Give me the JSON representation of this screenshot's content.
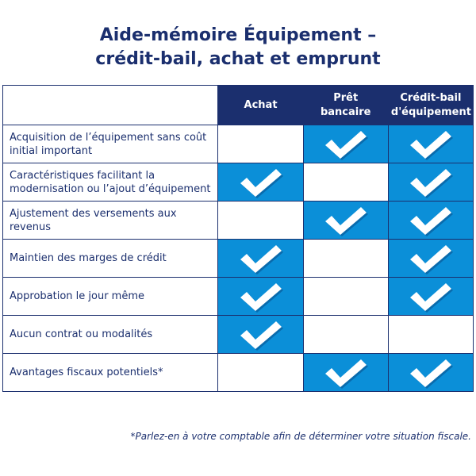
{
  "title": {
    "line1": "Aide-mémoire Équipement –",
    "line2": "crédit-bail, achat et emprunt"
  },
  "colors": {
    "navy": "#1b2f6e",
    "blue": "#0b8fd8",
    "check": "#ffffff"
  },
  "table": {
    "headers": [
      "Achat",
      "Prêt bancaire",
      "Crédit-bail d'équipement"
    ],
    "rows": [
      {
        "label": "Acquisition de l’équipement sans coût initial important",
        "checks": [
          false,
          true,
          true
        ]
      },
      {
        "label": "Caractéristiques facilitant la modernisation ou l’ajout d’équipement",
        "checks": [
          true,
          false,
          true
        ]
      },
      {
        "label": "Ajustement des versements aux revenus",
        "checks": [
          false,
          true,
          true
        ]
      },
      {
        "label": "Maintien des marges de crédit",
        "checks": [
          true,
          false,
          true
        ]
      },
      {
        "label": "Approbation le jour même",
        "checks": [
          true,
          false,
          true
        ]
      },
      {
        "label": "Aucun contrat ou modalités",
        "checks": [
          true,
          false,
          false
        ]
      },
      {
        "label": "Avantages fiscaux potentiels*",
        "checks": [
          false,
          true,
          true
        ]
      }
    ]
  },
  "footnote": "*Parlez-en à votre comptable afin de déterminer votre situation fiscale."
}
